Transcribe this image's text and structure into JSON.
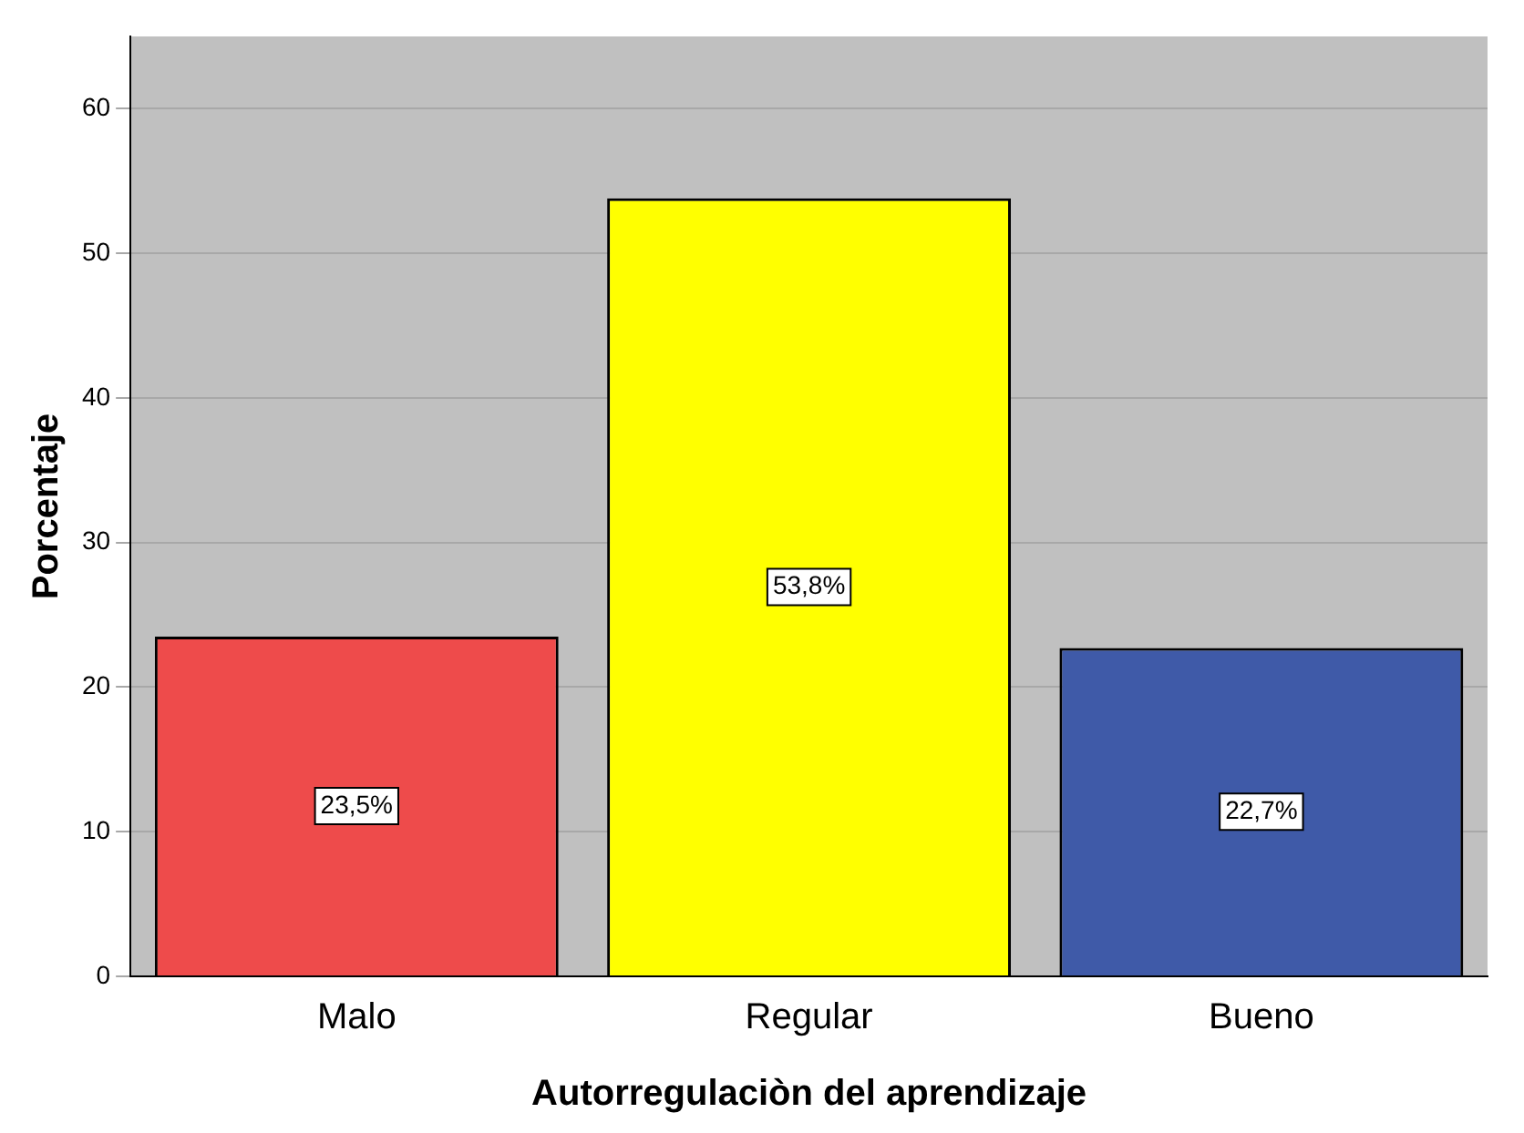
{
  "chart_data": {
    "type": "bar",
    "xlabel": "Autorregulaciòn del aprendizaje",
    "ylabel": "Porcentaje",
    "categories": [
      "Malo",
      "Regular",
      "Bueno"
    ],
    "values": [
      23.5,
      53.8,
      22.7
    ],
    "colors": [
      "#ee4b4b",
      "#ffff00",
      "#3f5aa8"
    ],
    "value_labels": [
      "23,5%",
      "53,8%",
      "22,7%"
    ],
    "ylim": [
      0,
      65
    ],
    "yticks": [
      0,
      10,
      20,
      30,
      40,
      50,
      60
    ],
    "grid": "y",
    "legend": false
  }
}
